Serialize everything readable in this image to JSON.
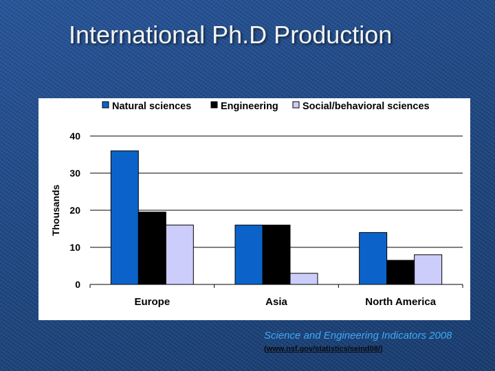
{
  "slide": {
    "title": "International Ph.D Production"
  },
  "source": {
    "citation": "Science and Engineering Indicators 2008",
    "open_paren": "(",
    "url_text": "www.nsf.gov/statistics/seind08/",
    "close_paren": ")"
  },
  "colors": {
    "natural_sciences": "#0b63c9",
    "engineering": "#000000",
    "social_behavioral": "#cccdfb"
  },
  "chart_data": {
    "type": "bar",
    "title": "",
    "xlabel": "",
    "ylabel": "Thousands",
    "categories": [
      "Europe",
      "Asia",
      "North America"
    ],
    "series": [
      {
        "name": "Natural sciences",
        "values": [
          36,
          16,
          14
        ]
      },
      {
        "name": "Engineering",
        "values": [
          19.5,
          16,
          6.5
        ]
      },
      {
        "name": "Social/behavioral sciences",
        "values": [
          16,
          3,
          8
        ]
      }
    ],
    "ylim": [
      0,
      40
    ],
    "yticks": [
      0,
      10,
      20,
      30,
      40
    ],
    "grid": true,
    "legend_position": "top"
  }
}
